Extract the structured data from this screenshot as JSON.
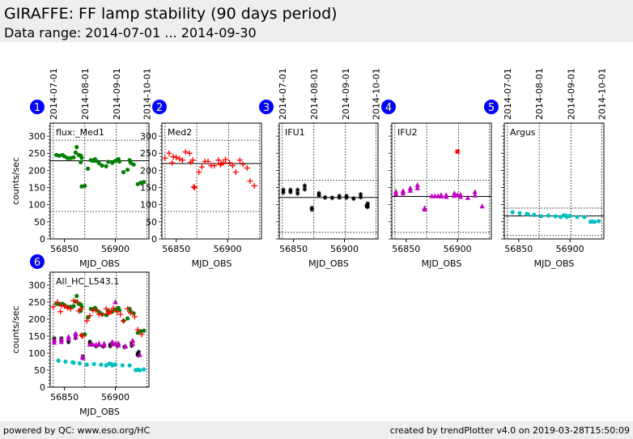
{
  "header": {
    "title": "GIRAFFE: FF lamp stability (90 days period)",
    "subtitle": "Data range: 2014-07-01 ... 2014-09-30"
  },
  "footer": {
    "left": "powered by QC: www.eso.org/HC",
    "right": "created by trendPlotter v4.0 on 2019-03-28T15:50:09"
  },
  "chart_data": {
    "type": "scatter",
    "xlabel": "MJD_OBS",
    "ylabel": "counts/sec",
    "xlim": [
      56836,
      56933
    ],
    "ylim": [
      0,
      338
    ],
    "xticks": [
      56850,
      56900
    ],
    "yticks": [
      0,
      50,
      100,
      150,
      200,
      250,
      300
    ],
    "date_ticks": [
      {
        "label": "2014-07-01",
        "mjd": 56839
      },
      {
        "label": "2014-08-01",
        "mjd": 56870
      },
      {
        "label": "2014-09-01",
        "mjd": 56901
      },
      {
        "label": "2014-10-01",
        "mjd": 56931
      }
    ],
    "colors": {
      "Med1": "#008000",
      "Med2": "#ff0000",
      "IFU1": "#000000",
      "IFU2": "#c000c0",
      "Argus": "#00c0c0",
      "badge": "#0000ff"
    },
    "panels": [
      {
        "number": "1",
        "label": "flux:_Med1",
        "ref": 228,
        "limits": [
          288,
          80
        ],
        "series": [
          "Med1"
        ]
      },
      {
        "number": "2",
        "label": "Med2",
        "ref": 220,
        "limits": [
          288,
          80
        ],
        "series": [
          "Med2"
        ]
      },
      {
        "number": "3",
        "label": "IFU1",
        "ref": 121,
        "limits": [
          171,
          19
        ],
        "series": [
          "IFU1"
        ]
      },
      {
        "number": "4",
        "label": "IFU2",
        "ref": 124,
        "limits": [
          171,
          19
        ],
        "series": [
          "IFU2"
        ],
        "outliers": [
          [
            56900,
            255
          ]
        ]
      },
      {
        "number": "5",
        "label": "Argus",
        "ref": 67,
        "limits": [
          90,
          10
        ],
        "series": [
          "Argus"
        ]
      },
      {
        "number": "6",
        "label": "All_HC_L543.1",
        "series": [
          "Med1",
          "Med2",
          "IFU1",
          "IFU2",
          "Argus"
        ]
      }
    ],
    "series": {
      "Med1": {
        "marker": "circle",
        "points": [
          [
            56842,
            245
          ],
          [
            56845,
            243
          ],
          [
            56848,
            245
          ],
          [
            56850,
            241
          ],
          [
            56853,
            236
          ],
          [
            56856,
            236
          ],
          [
            56859,
            238
          ],
          [
            56861,
            252
          ],
          [
            56862,
            268
          ],
          [
            56864,
            245
          ],
          [
            56866,
            243
          ],
          [
            56866,
            224
          ],
          [
            56867,
            237
          ],
          [
            56867,
            153
          ],
          [
            56870,
            155
          ],
          [
            56873,
            205
          ],
          [
            56876,
            230
          ],
          [
            56878,
            228
          ],
          [
            56880,
            233
          ],
          [
            56881,
            228
          ],
          [
            56884,
            221
          ],
          [
            56887,
            214
          ],
          [
            56891,
            212
          ],
          [
            56893,
            225
          ],
          [
            56897,
            222
          ],
          [
            56900,
            228
          ],
          [
            56903,
            233
          ],
          [
            56904,
            226
          ],
          [
            56908,
            195
          ],
          [
            56912,
            202
          ],
          [
            56914,
            230
          ],
          [
            56915,
            222
          ],
          [
            56918,
            217
          ],
          [
            56922,
            160
          ],
          [
            56925,
            164
          ],
          [
            56928,
            166
          ]
        ]
      },
      "Med2": {
        "marker": "plus",
        "points": [
          [
            56839,
            236
          ],
          [
            56843,
            250
          ],
          [
            56846,
            222
          ],
          [
            56847,
            240
          ],
          [
            56850,
            238
          ],
          [
            56853,
            234
          ],
          [
            56856,
            230
          ],
          [
            56859,
            254
          ],
          [
            56863,
            250
          ],
          [
            56864,
            224
          ],
          [
            56866,
            230
          ],
          [
            56867,
            152
          ],
          [
            56868,
            150
          ],
          [
            56872,
            195
          ],
          [
            56875,
            210
          ],
          [
            56878,
            226
          ],
          [
            56881,
            226
          ],
          [
            56884,
            214
          ],
          [
            56887,
            214
          ],
          [
            56891,
            230
          ],
          [
            56893,
            217
          ],
          [
            56894,
            220
          ],
          [
            56896,
            222
          ],
          [
            56898,
            232
          ],
          [
            56902,
            222
          ],
          [
            56905,
            214
          ],
          [
            56908,
            195
          ],
          [
            56912,
            230
          ],
          [
            56915,
            218
          ],
          [
            56919,
            207
          ],
          [
            56922,
            169
          ],
          [
            56926,
            155
          ]
        ]
      },
      "IFU1": {
        "marker": "star",
        "points": [
          [
            56840,
            143
          ],
          [
            56840,
            136
          ],
          [
            56847,
            143
          ],
          [
            56847,
            137
          ],
          [
            56854,
            143
          ],
          [
            56854,
            133
          ],
          [
            56861,
            155
          ],
          [
            56861,
            145
          ],
          [
            56868,
            90
          ],
          [
            56868,
            86
          ],
          [
            56875,
            133
          ],
          [
            56875,
            127
          ],
          [
            56881,
            121
          ],
          [
            56888,
            120
          ],
          [
            56895,
            125
          ],
          [
            56895,
            121
          ],
          [
            56902,
            125
          ],
          [
            56902,
            121
          ],
          [
            56909,
            118
          ],
          [
            56916,
            130
          ],
          [
            56916,
            122
          ],
          [
            56922,
            98
          ],
          [
            56922,
            95
          ],
          [
            56923,
            103
          ],
          [
            56923,
            94
          ]
        ]
      },
      "IFU2": {
        "marker": "triangle",
        "points": [
          [
            56840,
            138
          ],
          [
            56840,
            131
          ],
          [
            56847,
            140
          ],
          [
            56847,
            133
          ],
          [
            56854,
            148
          ],
          [
            56854,
            141
          ],
          [
            56861,
            157
          ],
          [
            56861,
            148
          ],
          [
            56868,
            90
          ],
          [
            56868,
            86
          ],
          [
            56875,
            125
          ],
          [
            56878,
            125
          ],
          [
            56881,
            125
          ],
          [
            56884,
            128
          ],
          [
            56884,
            124
          ],
          [
            56889,
            128
          ],
          [
            56889,
            123
          ],
          [
            56897,
            133
          ],
          [
            56897,
            126
          ],
          [
            56900,
            128
          ],
          [
            56903,
            129
          ],
          [
            56903,
            123
          ],
          [
            56910,
            120
          ],
          [
            56917,
            137
          ],
          [
            56917,
            127
          ],
          [
            56924,
            95
          ]
        ]
      },
      "Argus": {
        "marker": "circle",
        "points": [
          [
            56844,
            78
          ],
          [
            56851,
            75
          ],
          [
            56858,
            73
          ],
          [
            56859,
            72
          ],
          [
            56865,
            70
          ],
          [
            56872,
            66
          ],
          [
            56879,
            68
          ],
          [
            56886,
            66
          ],
          [
            56891,
            64
          ],
          [
            56894,
            69
          ],
          [
            56896,
            68
          ],
          [
            56897,
            64
          ],
          [
            56900,
            67
          ],
          [
            56907,
            64
          ],
          [
            56914,
            64
          ],
          [
            56920,
            50
          ],
          [
            56922,
            51
          ],
          [
            56924,
            50
          ],
          [
            56928,
            52
          ]
        ]
      }
    }
  }
}
